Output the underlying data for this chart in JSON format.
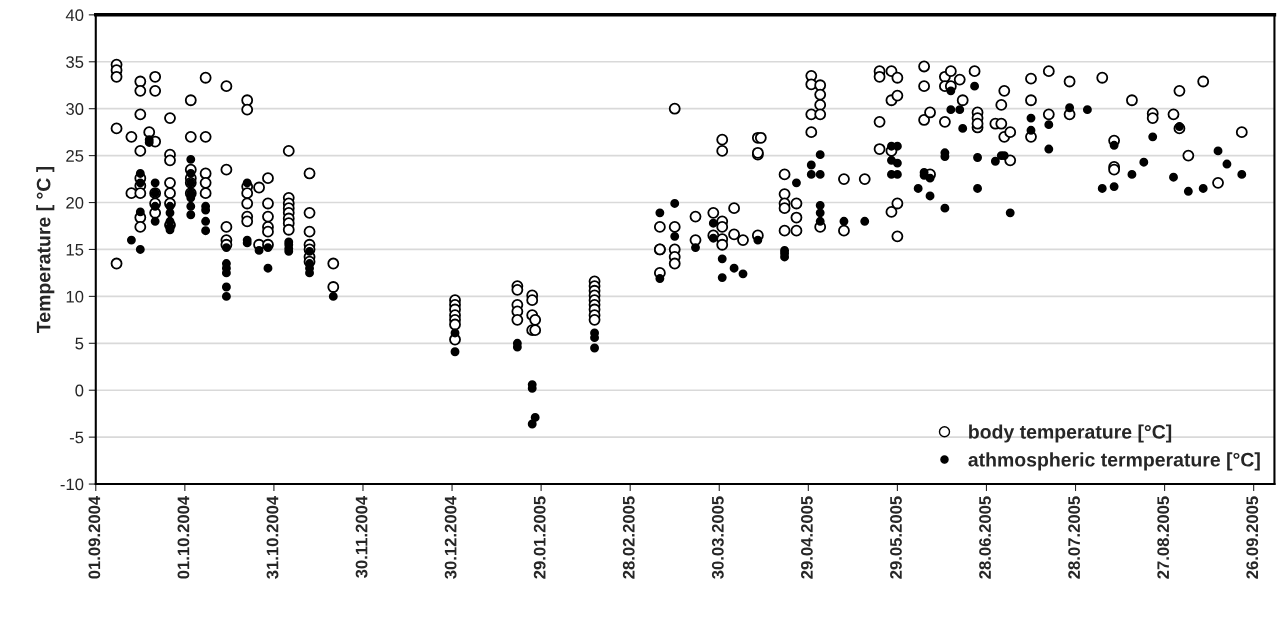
{
  "chart_data": {
    "type": "scatter",
    "ylabel": "Temperature [ °C ]",
    "xlim": [
      "2004-09-01",
      "2005-10-03"
    ],
    "xticks": [
      {
        "value": "2004-09-01",
        "label": "01.09.2004"
      },
      {
        "value": "2004-10-01",
        "label": "01.10.2004"
      },
      {
        "value": "2004-10-31",
        "label": "31.10.2004"
      },
      {
        "value": "2004-11-30",
        "label": "30.11.2004"
      },
      {
        "value": "2004-12-30",
        "label": "30.12.2004"
      },
      {
        "value": "2005-01-29",
        "label": "29.01.2005"
      },
      {
        "value": "2005-02-28",
        "label": "28.02.2005"
      },
      {
        "value": "2005-03-30",
        "label": "30.03.2005"
      },
      {
        "value": "2005-04-29",
        "label": "29.04.2005"
      },
      {
        "value": "2005-05-29",
        "label": "29.05.2005"
      },
      {
        "value": "2005-06-28",
        "label": "28.06.2005"
      },
      {
        "value": "2005-07-28",
        "label": "28.07.2005"
      },
      {
        "value": "2005-08-27",
        "label": "27.08.2005"
      },
      {
        "value": "2005-09-26",
        "label": "26.09.2005"
      }
    ],
    "ylim": [
      -10,
      40
    ],
    "yticks": [
      -10,
      -5,
      0,
      5,
      10,
      15,
      20,
      25,
      30,
      35,
      40
    ],
    "grid": "y",
    "legend": "bottom right",
    "marker": "circle",
    "series": [
      {
        "name": "body temperature [°C]",
        "color": "#ffffff",
        "x": [
          "2004-09-08",
          "2004-09-08",
          "2004-09-08",
          "2004-09-08",
          "2004-09-08",
          "2004-09-13",
          "2004-09-13",
          "2004-09-16",
          "2004-09-16",
          "2004-09-16",
          "2004-09-16",
          "2004-09-16",
          "2004-09-16",
          "2004-09-16",
          "2004-09-16",
          "2004-09-16",
          "2004-09-19",
          "2004-09-21",
          "2004-09-21",
          "2004-09-21",
          "2004-09-21",
          "2004-09-21",
          "2004-09-21",
          "2004-09-26",
          "2004-09-26",
          "2004-09-26",
          "2004-09-26",
          "2004-09-26",
          "2004-09-26",
          "2004-09-26",
          "2004-10-03",
          "2004-10-03",
          "2004-10-03",
          "2004-10-03",
          "2004-10-03",
          "2004-10-03",
          "2004-10-08",
          "2004-10-08",
          "2004-10-08",
          "2004-10-08",
          "2004-10-08",
          "2004-10-15",
          "2004-10-15",
          "2004-10-15",
          "2004-10-15",
          "2004-10-15",
          "2004-10-22",
          "2004-10-22",
          "2004-10-22",
          "2004-10-22",
          "2004-10-22",
          "2004-10-22",
          "2004-10-22",
          "2004-10-26",
          "2004-10-26",
          "2004-10-29",
          "2004-10-29",
          "2004-10-29",
          "2004-10-29",
          "2004-10-29",
          "2004-10-29",
          "2004-11-05",
          "2004-11-05",
          "2004-11-05",
          "2004-11-05",
          "2004-11-05",
          "2004-11-05",
          "2004-11-05",
          "2004-11-05",
          "2004-11-12",
          "2004-11-12",
          "2004-11-12",
          "2004-11-12",
          "2004-11-12",
          "2004-11-12",
          "2004-11-12",
          "2004-11-20",
          "2004-11-20",
          "2004-12-31",
          "2004-12-31",
          "2004-12-31",
          "2004-12-31",
          "2004-12-31",
          "2004-12-31",
          "2004-12-31",
          "2005-01-21",
          "2005-01-21",
          "2005-01-21",
          "2005-01-21",
          "2005-01-21",
          "2005-01-26",
          "2005-01-26",
          "2005-01-26",
          "2005-01-26",
          "2005-01-27",
          "2005-01-27",
          "2005-02-16",
          "2005-02-16",
          "2005-02-16",
          "2005-02-16",
          "2005-02-16",
          "2005-02-16",
          "2005-02-16",
          "2005-02-16",
          "2005-02-16",
          "2005-03-10",
          "2005-03-10",
          "2005-03-10",
          "2005-03-10",
          "2005-03-15",
          "2005-03-15",
          "2005-03-15",
          "2005-03-15",
          "2005-03-15",
          "2005-03-22",
          "2005-03-22",
          "2005-03-28",
          "2005-03-28",
          "2005-03-31",
          "2005-03-31",
          "2005-03-31",
          "2005-03-31",
          "2005-03-31",
          "2005-03-31",
          "2005-04-04",
          "2005-04-04",
          "2005-04-07",
          "2005-04-12",
          "2005-04-13",
          "2005-04-12",
          "2005-04-12",
          "2005-04-12",
          "2005-04-21",
          "2005-04-21",
          "2005-04-21",
          "2005-04-21",
          "2005-04-21",
          "2005-04-25",
          "2005-04-25",
          "2005-04-25",
          "2005-04-30",
          "2005-04-30",
          "2005-04-30",
          "2005-04-30",
          "2005-05-03",
          "2005-05-03",
          "2005-05-03",
          "2005-05-03",
          "2005-05-03",
          "2005-05-11",
          "2005-05-11",
          "2005-05-18",
          "2005-05-23",
          "2005-05-23",
          "2005-05-23",
          "2005-05-23",
          "2005-05-27",
          "2005-05-27",
          "2005-05-27",
          "2005-05-27",
          "2005-05-29",
          "2005-05-29",
          "2005-05-29",
          "2005-05-29",
          "2005-06-07",
          "2005-06-07",
          "2005-06-07",
          "2005-06-09",
          "2005-06-09",
          "2005-06-14",
          "2005-06-14",
          "2005-06-14",
          "2005-06-16",
          "2005-06-16",
          "2005-06-19",
          "2005-06-20",
          "2005-06-24",
          "2005-06-25",
          "2005-06-25",
          "2005-06-25",
          "2005-06-25",
          "2005-07-01",
          "2005-07-03",
          "2005-07-03",
          "2005-07-04",
          "2005-07-04",
          "2005-07-06",
          "2005-07-06",
          "2005-07-13",
          "2005-07-13",
          "2005-07-13",
          "2005-07-19",
          "2005-07-19",
          "2005-07-26",
          "2005-07-26",
          "2005-08-06",
          "2005-08-10",
          "2005-08-10",
          "2005-08-10",
          "2005-08-16",
          "2005-08-23",
          "2005-08-23",
          "2005-08-30",
          "2005-09-01",
          "2005-09-01",
          "2005-09-04",
          "2005-09-09",
          "2005-09-14",
          "2005-09-22"
        ],
        "values": [
          34.7,
          34.1,
          33.4,
          27.9,
          13.5,
          27.0,
          21.0,
          32.9,
          31.9,
          29.4,
          25.5,
          22.6,
          21.8,
          21.0,
          18.4,
          17.4,
          27.5,
          33.4,
          31.9,
          26.5,
          21.0,
          19.9,
          18.9,
          29.0,
          25.1,
          24.5,
          22.1,
          21.0,
          19.9,
          17.6,
          30.9,
          27.0,
          23.5,
          22.6,
          22.1,
          21.0,
          33.3,
          27.0,
          23.1,
          22.1,
          21.0,
          32.4,
          23.5,
          17.4,
          16.0,
          15.5,
          30.9,
          29.9,
          21.7,
          21.0,
          19.9,
          18.5,
          18.0,
          21.6,
          15.5,
          22.6,
          19.9,
          18.5,
          17.4,
          16.9,
          15.5,
          25.5,
          20.5,
          19.9,
          19.4,
          18.9,
          18.3,
          17.8,
          17.1,
          23.1,
          18.9,
          16.9,
          15.5,
          15.0,
          14.2,
          13.7,
          13.5,
          11.0,
          9.6,
          9.1,
          8.6,
          8.0,
          7.5,
          7.0,
          5.4,
          11.1,
          10.7,
          9.1,
          8.4,
          7.5,
          10.1,
          9.6,
          8.0,
          6.4,
          7.5,
          6.4,
          11.6,
          11.1,
          10.6,
          10.1,
          9.6,
          9.1,
          8.6,
          8.0,
          7.5,
          17.4,
          15.0,
          15.0,
          12.5,
          30.0,
          17.4,
          15.0,
          14.2,
          13.5,
          18.5,
          16.0,
          18.9,
          16.5,
          26.7,
          25.5,
          18.0,
          17.4,
          16.1,
          15.5,
          19.4,
          16.6,
          16.0,
          26.9,
          26.9,
          25.1,
          25.3,
          16.5,
          23.0,
          20.9,
          19.9,
          19.4,
          17.0,
          19.9,
          18.4,
          17.0,
          33.5,
          32.6,
          29.4,
          27.5,
          32.5,
          31.5,
          30.4,
          29.4,
          17.4,
          22.5,
          17.0,
          22.5,
          34.0,
          33.4,
          28.6,
          25.7,
          34.0,
          30.9,
          25.5,
          19.0,
          33.3,
          31.4,
          19.9,
          16.4,
          34.5,
          32.4,
          28.8,
          29.6,
          23.0,
          33.4,
          32.4,
          28.6,
          34.0,
          32.4,
          33.1,
          30.9,
          34.0,
          29.6,
          29.0,
          28.0,
          28.4,
          28.4,
          28.4,
          30.4,
          31.9,
          27.0,
          27.5,
          24.5,
          33.2,
          30.9,
          27.0,
          34.0,
          29.4,
          32.9,
          29.4,
          33.3,
          26.6,
          23.8,
          23.5,
          30.9,
          29.5,
          29.0,
          29.4,
          31.9,
          27.9,
          25.0,
          32.9,
          22.1,
          27.5
        ]
      },
      {
        "name": "athmospheric termperature [°C]",
        "color": "#000000",
        "x": [
          "2004-09-13",
          "2004-09-16",
          "2004-09-16",
          "2004-09-16",
          "2004-09-16",
          "2004-09-19",
          "2004-09-19",
          "2004-09-21",
          "2004-09-21",
          "2004-09-21",
          "2004-09-21",
          "2004-09-26",
          "2004-09-26",
          "2004-09-26",
          "2004-09-26",
          "2004-09-26",
          "2004-10-03",
          "2004-10-03",
          "2004-10-03",
          "2004-10-03",
          "2004-10-03",
          "2004-10-03",
          "2004-10-03",
          "2004-10-08",
          "2004-10-08",
          "2004-10-08",
          "2004-10-08",
          "2004-10-15",
          "2004-10-15",
          "2004-10-15",
          "2004-10-15",
          "2004-10-15",
          "2004-10-15",
          "2004-10-22",
          "2004-10-22",
          "2004-10-22",
          "2004-10-26",
          "2004-10-29",
          "2004-10-29",
          "2004-11-05",
          "2004-11-05",
          "2004-11-05",
          "2004-11-05",
          "2004-11-12",
          "2004-11-12",
          "2004-11-12",
          "2004-11-12",
          "2004-11-20",
          "2004-12-31",
          "2004-12-31",
          "2005-01-21",
          "2005-01-21",
          "2005-01-26",
          "2005-01-26",
          "2005-01-26",
          "2005-01-27",
          "2005-02-16",
          "2005-02-16",
          "2005-02-16",
          "2005-03-10",
          "2005-03-10",
          "2005-03-15",
          "2005-03-15",
          "2005-03-22",
          "2005-03-28",
          "2005-03-28",
          "2005-03-31",
          "2005-03-31",
          "2005-04-04",
          "2005-04-07",
          "2005-04-12",
          "2005-04-21",
          "2005-04-21",
          "2005-04-21",
          "2005-04-25",
          "2005-04-30",
          "2005-04-30",
          "2005-05-03",
          "2005-05-03",
          "2005-05-03",
          "2005-05-03",
          "2005-05-03",
          "2005-05-11",
          "2005-05-18",
          "2005-05-27",
          "2005-05-27",
          "2005-05-27",
          "2005-05-29",
          "2005-05-29",
          "2005-05-29",
          "2005-06-05",
          "2005-06-07",
          "2005-06-07",
          "2005-06-09",
          "2005-06-09",
          "2005-06-14",
          "2005-06-14",
          "2005-06-14",
          "2005-06-16",
          "2005-06-16",
          "2005-06-19",
          "2005-06-20",
          "2005-06-24",
          "2005-06-25",
          "2005-06-25",
          "2005-07-01",
          "2005-07-03",
          "2005-07-04",
          "2005-07-06",
          "2005-07-13",
          "2005-07-13",
          "2005-07-19",
          "2005-07-19",
          "2005-07-26",
          "2005-08-01",
          "2005-08-06",
          "2005-08-10",
          "2005-08-10",
          "2005-08-16",
          "2005-08-20",
          "2005-08-23",
          "2005-08-30",
          "2005-09-01",
          "2005-09-04",
          "2005-09-09",
          "2005-09-14",
          "2005-09-17",
          "2005-09-22"
        ],
        "values": [
          16.0,
          23.1,
          22.1,
          19.0,
          15.0,
          26.7,
          26.4,
          22.1,
          21.0,
          19.6,
          18.0,
          19.6,
          18.9,
          18.0,
          17.4,
          17.1,
          24.6,
          23.1,
          22.1,
          21.0,
          20.5,
          19.6,
          18.7,
          19.6,
          19.2,
          18.0,
          17.0,
          15.2,
          13.5,
          13.0,
          12.5,
          11.0,
          10.0,
          22.1,
          16.0,
          15.7,
          14.9,
          15.2,
          13.0,
          15.8,
          15.5,
          15.1,
          14.8,
          14.8,
          13.5,
          13.0,
          12.5,
          10.0,
          6.1,
          4.1,
          5.0,
          4.6,
          0.6,
          0.2,
          -3.6,
          -2.9,
          6.1,
          5.6,
          4.5,
          18.9,
          11.9,
          19.9,
          16.4,
          15.2,
          17.8,
          16.2,
          14.0,
          12.0,
          13.0,
          12.4,
          16.0,
          14.9,
          14.6,
          14.2,
          22.1,
          24.0,
          23.0,
          25.1,
          23.0,
          19.7,
          18.9,
          18.0,
          18.0,
          18.0,
          26.0,
          24.5,
          23.0,
          26.0,
          24.2,
          23.0,
          21.5,
          23.2,
          22.9,
          22.6,
          20.7,
          25.3,
          24.9,
          19.4,
          31.9,
          29.9,
          29.9,
          27.9,
          32.4,
          24.8,
          21.5,
          24.4,
          25.0,
          25.0,
          18.9,
          29.0,
          27.7,
          28.3,
          25.7,
          30.1,
          29.9,
          21.5,
          26.1,
          21.7,
          23.0,
          24.3,
          27.0,
          22.7,
          28.1,
          21.2,
          21.5,
          25.5,
          24.1,
          23.0
        ]
      }
    ]
  }
}
